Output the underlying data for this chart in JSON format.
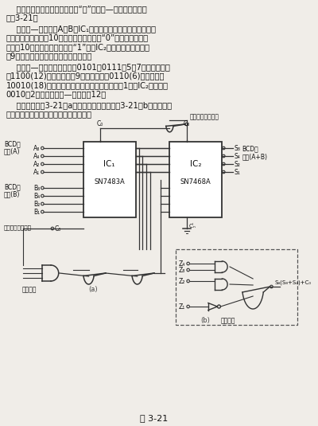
{
  "bg": "#f0ede8",
  "fg": "#111111",
  "fig_caption": "图 3-21",
  "para1_lines": [
    "    可以用两个四位全加器和几个“门”构成二—十进制加法器。",
    "见图3-21。"
  ],
  "para2_lines": [
    "    两个二—十进制数A和B由IC₁相加。它的总和是通过加六电路",
    "选择。如果总和低于10，则加六电路输出为“0”；如果总和大于",
    "或等于10，则加六电路的输出“1”，使IC₂加六。于是，对于大",
    "于9的数通过六推进传输到下一个十位。"
  ],
  "para3_lines": [
    "    例如二—十进制的两个数是0101和0111（5和7），相加总和",
    "是1100(12)。因为它大于9，所以加上了0110(6)，其结果是",
    "10010(18)。因此通过或门对下一个十进位数进1，而IC₂的输出是",
    "0010（2），这就是二—十进制的12。"
  ],
  "para4_lines": [
    "    基本电路以图3-21（a）表示，也可以采用图3-21（b）的加六电",
    "路形式或满足这种逻辑的其它加六电路。"
  ]
}
